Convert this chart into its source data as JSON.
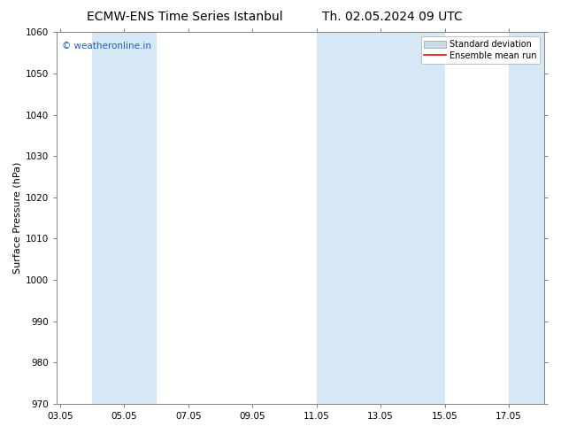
{
  "title_left": "ECMW-ENS Time Series Istanbul",
  "title_right": "Th. 02.05.2024 09 UTC",
  "ylabel": "Surface Pressure (hPa)",
  "ylim": [
    970,
    1060
  ],
  "yticks": [
    970,
    980,
    990,
    1000,
    1010,
    1020,
    1030,
    1040,
    1050,
    1060
  ],
  "xtick_labels": [
    "03.05",
    "05.05",
    "07.05",
    "09.05",
    "11.05",
    "13.05",
    "15.05",
    "17.05"
  ],
  "xtick_positions": [
    0,
    2,
    4,
    6,
    8,
    10,
    12,
    14
  ],
  "xlim": [
    -0.1,
    15.1
  ],
  "shaded_bands": [
    {
      "x_start": 1,
      "x_end": 3,
      "color": "#d6e8f5",
      "alpha": 1.0
    },
    {
      "x_start": 8,
      "x_end": 10,
      "color": "#d6e8f5",
      "alpha": 1.0
    },
    {
      "x_start": 10,
      "x_end": 12,
      "color": "#d6e8f5",
      "alpha": 1.0
    },
    {
      "x_start": 14,
      "x_end": 15.1,
      "color": "#d6e8f5",
      "alpha": 1.0
    }
  ],
  "background_color": "#ffffff",
  "watermark_text": "© weatheronline.in",
  "watermark_color": "#1a5fcc",
  "legend_std_color": "#c8dcea",
  "legend_std_edge": "#999999",
  "legend_mean_color": "#dd1111",
  "font_size_title": 10,
  "font_size_ylabel": 8,
  "font_size_ticks": 7.5,
  "font_size_legend": 7,
  "font_size_watermark": 7.5
}
